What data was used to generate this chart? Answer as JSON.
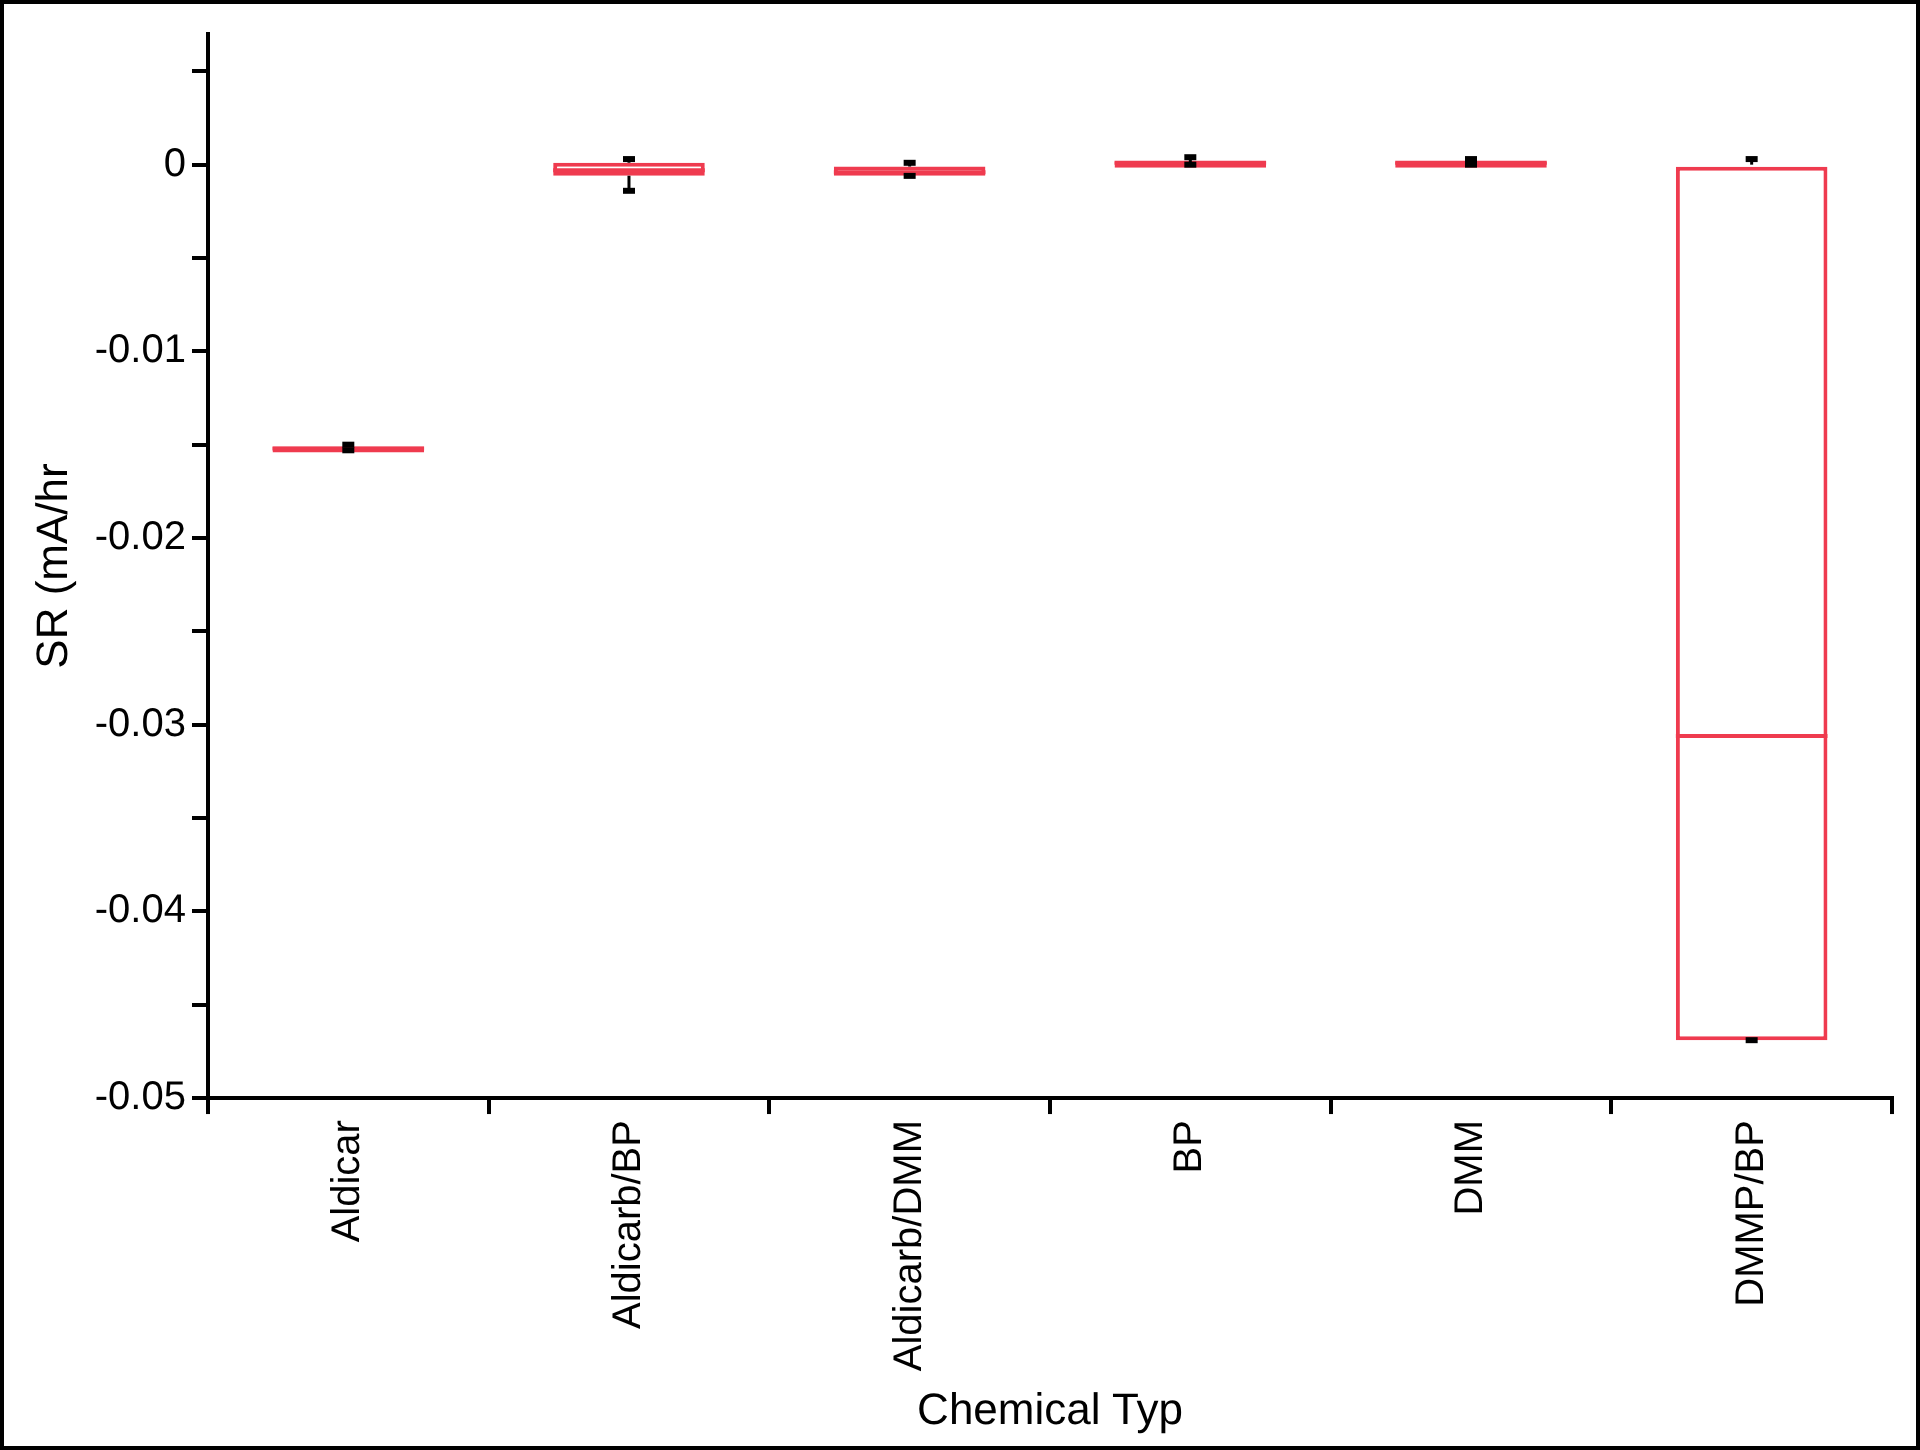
{
  "chart_data": {
    "type": "box",
    "xlabel": "Chemical Typ",
    "ylabel": "SR (mA/hr",
    "categories": [
      "Aldicar",
      "Aldicarb/BP",
      "Aldicarb/DMM",
      "BP",
      "DMM",
      "DMMP/BP"
    ],
    "boxes": [
      {
        "low": -0.0153,
        "q1": -0.0153,
        "median": -0.0152,
        "q3": -0.0151,
        "high": -0.015
      },
      {
        "low": -0.0014,
        "q1": -0.0006,
        "median": -0.0003,
        "q3": 0.0001,
        "high": 0.0003
      },
      {
        "low": -0.0006,
        "q1": -0.0006,
        "median": -0.0004,
        "q3": -0.0001,
        "high": 0.0001
      },
      {
        "low": 0,
        "q1": 0,
        "median": 0.0001,
        "q3": 0.0001,
        "high": 0.0004
      },
      {
        "low": 0,
        "q1": 0,
        "median": 0.0001,
        "q3": 0.0001,
        "high": 0.0003
      },
      {
        "low": -0.0469,
        "q1": -0.0469,
        "median": -0.0306,
        "q3": 0,
        "high": 0.0003
      }
    ],
    "color": "#ef3b4f",
    "ylim": [
      -0.05,
      0.007
    ],
    "yticks": [
      -0.05,
      {
        "value": -0.045,
        "label": null
      },
      -0.04,
      {
        "value": -0.035,
        "label": null
      },
      -0.03,
      {
        "value": -0.025,
        "label": null
      },
      -0.02,
      {
        "value": -0.015,
        "label": null
      },
      -0.01,
      {
        "value": -0.005,
        "label": null
      },
      0,
      {
        "value": 0.005,
        "label": null
      }
    ]
  }
}
